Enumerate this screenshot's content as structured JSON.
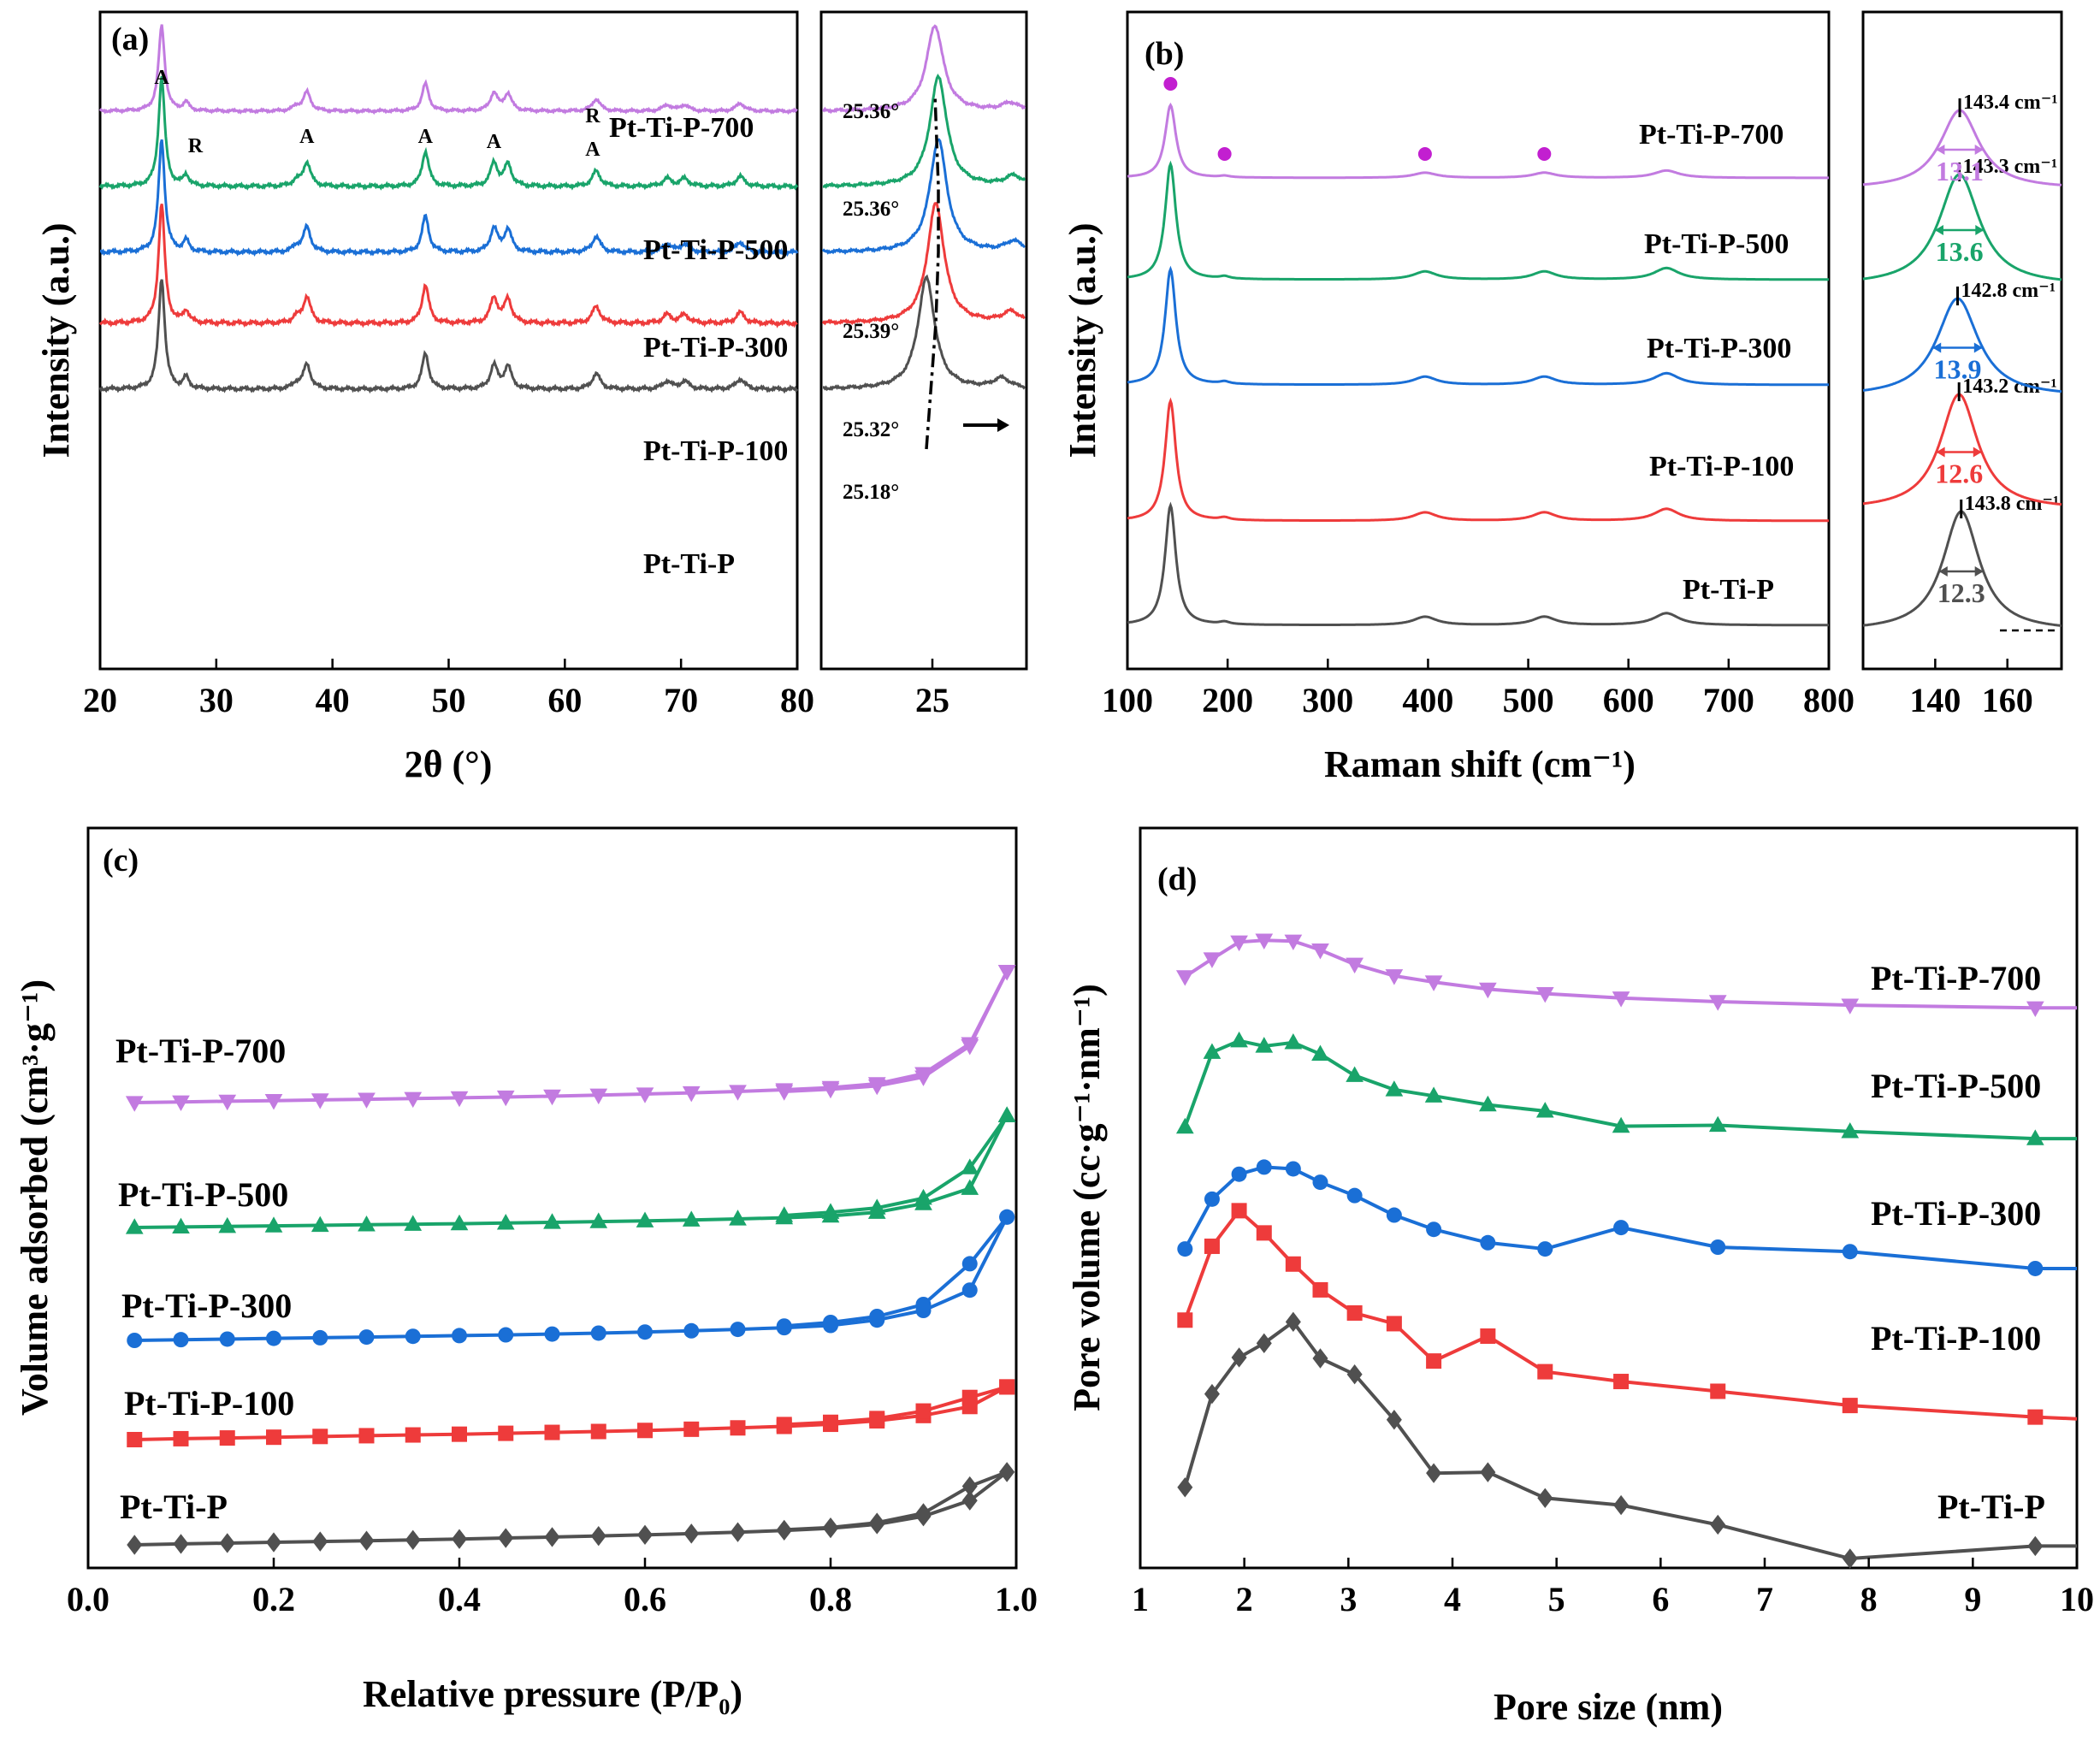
{
  "colors": {
    "Pt-Ti-P": "#505050",
    "Pt-Ti-P-100": "#ee3b3b",
    "Pt-Ti-P-300": "#1a6fd6",
    "Pt-Ti-P-500": "#19a46a",
    "Pt-Ti-P-700": "#c27be0",
    "raman_marker": "#c21fd0"
  },
  "series_order": [
    "Pt-Ti-P",
    "Pt-Ti-P-100",
    "Pt-Ti-P-300",
    "Pt-Ti-P-500",
    "Pt-Ti-P-700"
  ],
  "chart_data": [
    {
      "panel": "(a)",
      "type": "line",
      "title": "",
      "xlabel": "2θ (°)",
      "ylabel": "Intensity (a.u.)",
      "xlim": [
        20,
        80
      ],
      "xticks": [
        20,
        30,
        40,
        50,
        60,
        70,
        80
      ],
      "series": [
        {
          "name": "Pt-Ti-P",
          "label": "Pt-Ti-P"
        },
        {
          "name": "Pt-Ti-P-100",
          "label": "Pt-Ti-P-100"
        },
        {
          "name": "Pt-Ti-P-300",
          "label": "Pt-Ti-P-300"
        },
        {
          "name": "Pt-Ti-P-500",
          "label": "Pt-Ti-P-500"
        },
        {
          "name": "Pt-Ti-P-700",
          "label": "Pt-Ti-P-700"
        }
      ],
      "peaks": [
        {
          "x": 25.3,
          "h": 1.0,
          "w": 0.32
        },
        {
          "x": 27.4,
          "h": 0.1,
          "w": 0.3
        },
        {
          "x": 36.9,
          "h": 0.05,
          "w": 0.4
        },
        {
          "x": 37.8,
          "h": 0.22,
          "w": 0.38
        },
        {
          "x": 48.0,
          "h": 0.32,
          "w": 0.35
        },
        {
          "x": 53.9,
          "h": 0.21,
          "w": 0.38
        },
        {
          "x": 55.1,
          "h": 0.2,
          "w": 0.38
        },
        {
          "x": 62.7,
          "h": 0.14,
          "w": 0.42
        },
        {
          "x": 68.8,
          "h": 0.07,
          "w": 0.45
        },
        {
          "x": 70.3,
          "h": 0.07,
          "w": 0.45
        },
        {
          "x": 75.1,
          "h": 0.09,
          "w": 0.45
        }
      ],
      "phase_labels": [
        {
          "text": "A",
          "x": 25.3
        },
        {
          "text": "R",
          "x": 28.2
        },
        {
          "text": "A",
          "x": 37.8
        },
        {
          "text": "A",
          "x": 48.0
        },
        {
          "text": "A",
          "x": 53.9
        },
        {
          "text": "R",
          "x": 62.4
        },
        {
          "text": "A",
          "x": 62.4
        }
      ]
    },
    {
      "panel": "(a) inset",
      "type": "line",
      "xticks": [
        25
      ],
      "peak_positions": [
        {
          "series": "Pt-Ti-P",
          "label": "25.18°",
          "x": 25.18
        },
        {
          "series": "Pt-Ti-P-100",
          "label": "25.32°",
          "x": 25.32
        },
        {
          "series": "Pt-Ti-P-300",
          "label": "25.39°",
          "x": 25.39
        },
        {
          "series": "Pt-Ti-P-500",
          "label": "25.36°",
          "x": 25.36
        },
        {
          "series": "Pt-Ti-P-700",
          "label": "25.36°",
          "x": 25.36
        }
      ]
    },
    {
      "panel": "(b)",
      "type": "line",
      "xlabel": "Raman shift (cm⁻¹)",
      "ylabel": "Intensity (a.u.)",
      "xlim": [
        100,
        800
      ],
      "xticks": [
        100,
        200,
        300,
        400,
        500,
        600,
        700,
        800
      ],
      "bands": [
        {
          "x": 143,
          "h": 1.0,
          "w": 6.5
        },
        {
          "x": 197,
          "h": 0.02,
          "w": 6
        },
        {
          "x": 397,
          "h": 0.07,
          "w": 14
        },
        {
          "x": 516,
          "h": 0.07,
          "w": 14
        },
        {
          "x": 638,
          "h": 0.1,
          "w": 15
        }
      ],
      "marker_positions": [
        143,
        197,
        397,
        516
      ],
      "series": [
        {
          "name": "Pt-Ti-P",
          "label": "Pt-Ti-P"
        },
        {
          "name": "Pt-Ti-P-100",
          "label": "Pt-Ti-P-100"
        },
        {
          "name": "Pt-Ti-P-300",
          "label": "Pt-Ti-P-300"
        },
        {
          "name": "Pt-Ti-P-500",
          "label": "Pt-Ti-P-500"
        },
        {
          "name": "Pt-Ti-P-700",
          "label": "Pt-Ti-P-700"
        }
      ]
    },
    {
      "panel": "(b) inset",
      "type": "line",
      "xlim": [
        120,
        175
      ],
      "xticks": [
        140,
        160
      ],
      "bands": [
        {
          "series": "Pt-Ti-P",
          "center_label": "143.8 cm⁻¹",
          "center": 143.8,
          "fwhm": 12.3,
          "fwhm_label": "12.3"
        },
        {
          "series": "Pt-Ti-P-100",
          "center_label": "143.2 cm⁻¹",
          "center": 143.2,
          "fwhm": 12.6,
          "fwhm_label": "12.6"
        },
        {
          "series": "Pt-Ti-P-300",
          "center_label": "142.8 cm⁻¹",
          "center": 142.8,
          "fwhm": 13.9,
          "fwhm_label": "13.9"
        },
        {
          "series": "Pt-Ti-P-500",
          "center_label": "143.3 cm⁻¹",
          "center": 143.3,
          "fwhm": 13.6,
          "fwhm_label": "13.6"
        },
        {
          "series": "Pt-Ti-P-700",
          "center_label": "143.4 cm⁻¹",
          "center": 143.4,
          "fwhm": 13.1,
          "fwhm_label": "13.1"
        }
      ]
    },
    {
      "panel": "(c)",
      "type": "line",
      "xlabel": "Relative pressure (P/P₀)",
      "ylabel": "Volume adsorbed (cm³·g⁻¹)",
      "xlim": [
        0.0,
        1.0
      ],
      "xticks": [
        0.0,
        0.2,
        0.4,
        0.6,
        0.8,
        1.0
      ],
      "x_adsorption": [
        0.05,
        0.1,
        0.15,
        0.2,
        0.25,
        0.3,
        0.35,
        0.4,
        0.45,
        0.5,
        0.55,
        0.6,
        0.65,
        0.7,
        0.75,
        0.8,
        0.85,
        0.9,
        0.95,
        0.99
      ],
      "x_desorption": [
        0.99,
        0.95,
        0.9,
        0.85,
        0.8,
        0.75
      ],
      "series": [
        {
          "name": "Pt-Ti-P",
          "label": "Pt-Ti-P",
          "marker": "diamond",
          "adsorption": [
            0,
            0.6,
            1.1,
            1.6,
            2.1,
            2.6,
            3.1,
            3.7,
            4.3,
            4.9,
            5.6,
            6.3,
            7.1,
            8.0,
            9.0,
            10.5,
            13,
            18,
            28,
            46
          ],
          "desorption": [
            46,
            37,
            20,
            14,
            11,
            9.5
          ]
        },
        {
          "name": "Pt-Ti-P-100",
          "label": "Pt-Ti-P-100",
          "marker": "square",
          "adsorption": [
            0,
            0.6,
            1.1,
            1.6,
            2.1,
            2.6,
            3.1,
            3.6,
            4.2,
            4.8,
            5.4,
            6.1,
            6.9,
            7.8,
            8.8,
            10.2,
            12.5,
            16,
            22,
            35
          ],
          "desorption": [
            35,
            28,
            19,
            14,
            11.5,
            10
          ]
        },
        {
          "name": "Pt-Ti-P-300",
          "label": "Pt-Ti-P-300",
          "marker": "circle",
          "adsorption": [
            0,
            0.6,
            1.1,
            1.7,
            2.2,
            2.8,
            3.4,
            4.0,
            4.6,
            5.3,
            6.1,
            7.0,
            8.0,
            9.2,
            10.6,
            12.5,
            17,
            25,
            42,
            103
          ],
          "desorption": [
            103,
            64,
            30,
            20,
            15,
            12
          ]
        },
        {
          "name": "Pt-Ti-P-500",
          "label": "Pt-Ti-P-500",
          "marker": "triangle",
          "adsorption": [
            0,
            0.5,
            1.0,
            1.5,
            2.0,
            2.5,
            3.0,
            3.5,
            4.1,
            4.7,
            5.4,
            6.1,
            6.9,
            7.9,
            9.0,
            10.6,
            14,
            22,
            36,
            103
          ],
          "desorption": [
            103,
            55,
            27,
            18,
            14,
            11
          ]
        },
        {
          "name": "Pt-Ti-P-700",
          "label": "Pt-Ti-P-700",
          "marker": "triangle-down",
          "adsorption": [
            0,
            0.6,
            1.2,
            1.8,
            2.4,
            3.0,
            3.6,
            4.3,
            5.0,
            5.8,
            6.7,
            7.7,
            8.8,
            10.0,
            11.5,
            13.5,
            17,
            26,
            53,
            118
          ],
          "desorption": [
            118,
            51,
            23,
            15,
            12,
            10
          ]
        }
      ]
    },
    {
      "panel": "(d)",
      "type": "line",
      "xlabel": "Pore size (nm)",
      "ylabel": "Pore volume (cc·g⁻¹·nm⁻¹)",
      "xlim": [
        1,
        10
      ],
      "xticks": [
        1,
        2,
        3,
        4,
        5,
        6,
        7,
        8,
        9,
        10
      ],
      "series": [
        {
          "name": "Pt-Ti-P",
          "label": "Pt-Ti-P",
          "marker": "diamond",
          "x": [
            1.43,
            1.69,
            1.95,
            2.19,
            2.47,
            2.73,
            3.06,
            3.44,
            3.82,
            4.34,
            4.89,
            5.62,
            6.55,
            7.82,
            9.6,
            10.0
          ],
          "y": [
            8.0,
            18.5,
            22.6,
            24.2,
            26.6,
            22.5,
            20.7,
            15.6,
            9.6,
            9.7,
            6.8,
            6.0,
            3.8,
            0.0,
            1.4,
            1.4
          ]
        },
        {
          "name": "Pt-Ti-P-100",
          "label": "Pt-Ti-P-100",
          "marker": "square",
          "x": [
            1.43,
            1.69,
            1.95,
            2.19,
            2.47,
            2.73,
            3.06,
            3.44,
            3.82,
            4.34,
            4.89,
            5.62,
            6.55,
            7.82,
            9.6,
            10.0
          ],
          "y": [
            26.8,
            35.1,
            39.1,
            36.6,
            33.1,
            30.2,
            27.6,
            26.4,
            22.2,
            25.0,
            21.0,
            19.9,
            18.8,
            17.2,
            15.9,
            15.7
          ]
        },
        {
          "name": "Pt-Ti-P-300",
          "label": "Pt-Ti-P-300",
          "marker": "circle",
          "x": [
            1.43,
            1.69,
            1.95,
            2.19,
            2.47,
            2.73,
            3.06,
            3.44,
            3.82,
            4.34,
            4.89,
            5.62,
            6.55,
            7.82,
            9.6,
            10.0
          ],
          "y": [
            34.8,
            40.4,
            43.2,
            44.0,
            43.8,
            42.3,
            40.8,
            38.6,
            37.0,
            35.5,
            34.8,
            37.2,
            35.0,
            34.5,
            32.6,
            32.6
          ]
        },
        {
          "name": "Pt-Ti-P-500",
          "label": "Pt-Ti-P-500",
          "marker": "triangle",
          "x": [
            1.43,
            1.69,
            1.95,
            2.19,
            2.47,
            2.73,
            3.06,
            3.44,
            3.82,
            4.34,
            4.89,
            5.62,
            6.55,
            7.82,
            9.6,
            10.0
          ],
          "y": [
            48.5,
            56.9,
            58.2,
            57.6,
            58.0,
            56.7,
            54.3,
            52.7,
            52.0,
            51.0,
            50.3,
            48.6,
            48.7,
            48.0,
            47.2,
            47.2
          ]
        },
        {
          "name": "Pt-Ti-P-700",
          "label": "Pt-Ti-P-700",
          "marker": "triangle-down",
          "x": [
            1.43,
            1.69,
            1.95,
            2.19,
            2.47,
            2.73,
            3.06,
            3.44,
            3.82,
            4.34,
            4.89,
            5.62,
            6.55,
            7.82,
            9.6,
            10.0
          ],
          "y": [
            65.4,
            67.4,
            69.3,
            69.5,
            69.4,
            68.4,
            66.8,
            65.5,
            64.8,
            64.0,
            63.5,
            63.0,
            62.6,
            62.2,
            61.9,
            61.9
          ]
        }
      ]
    }
  ]
}
